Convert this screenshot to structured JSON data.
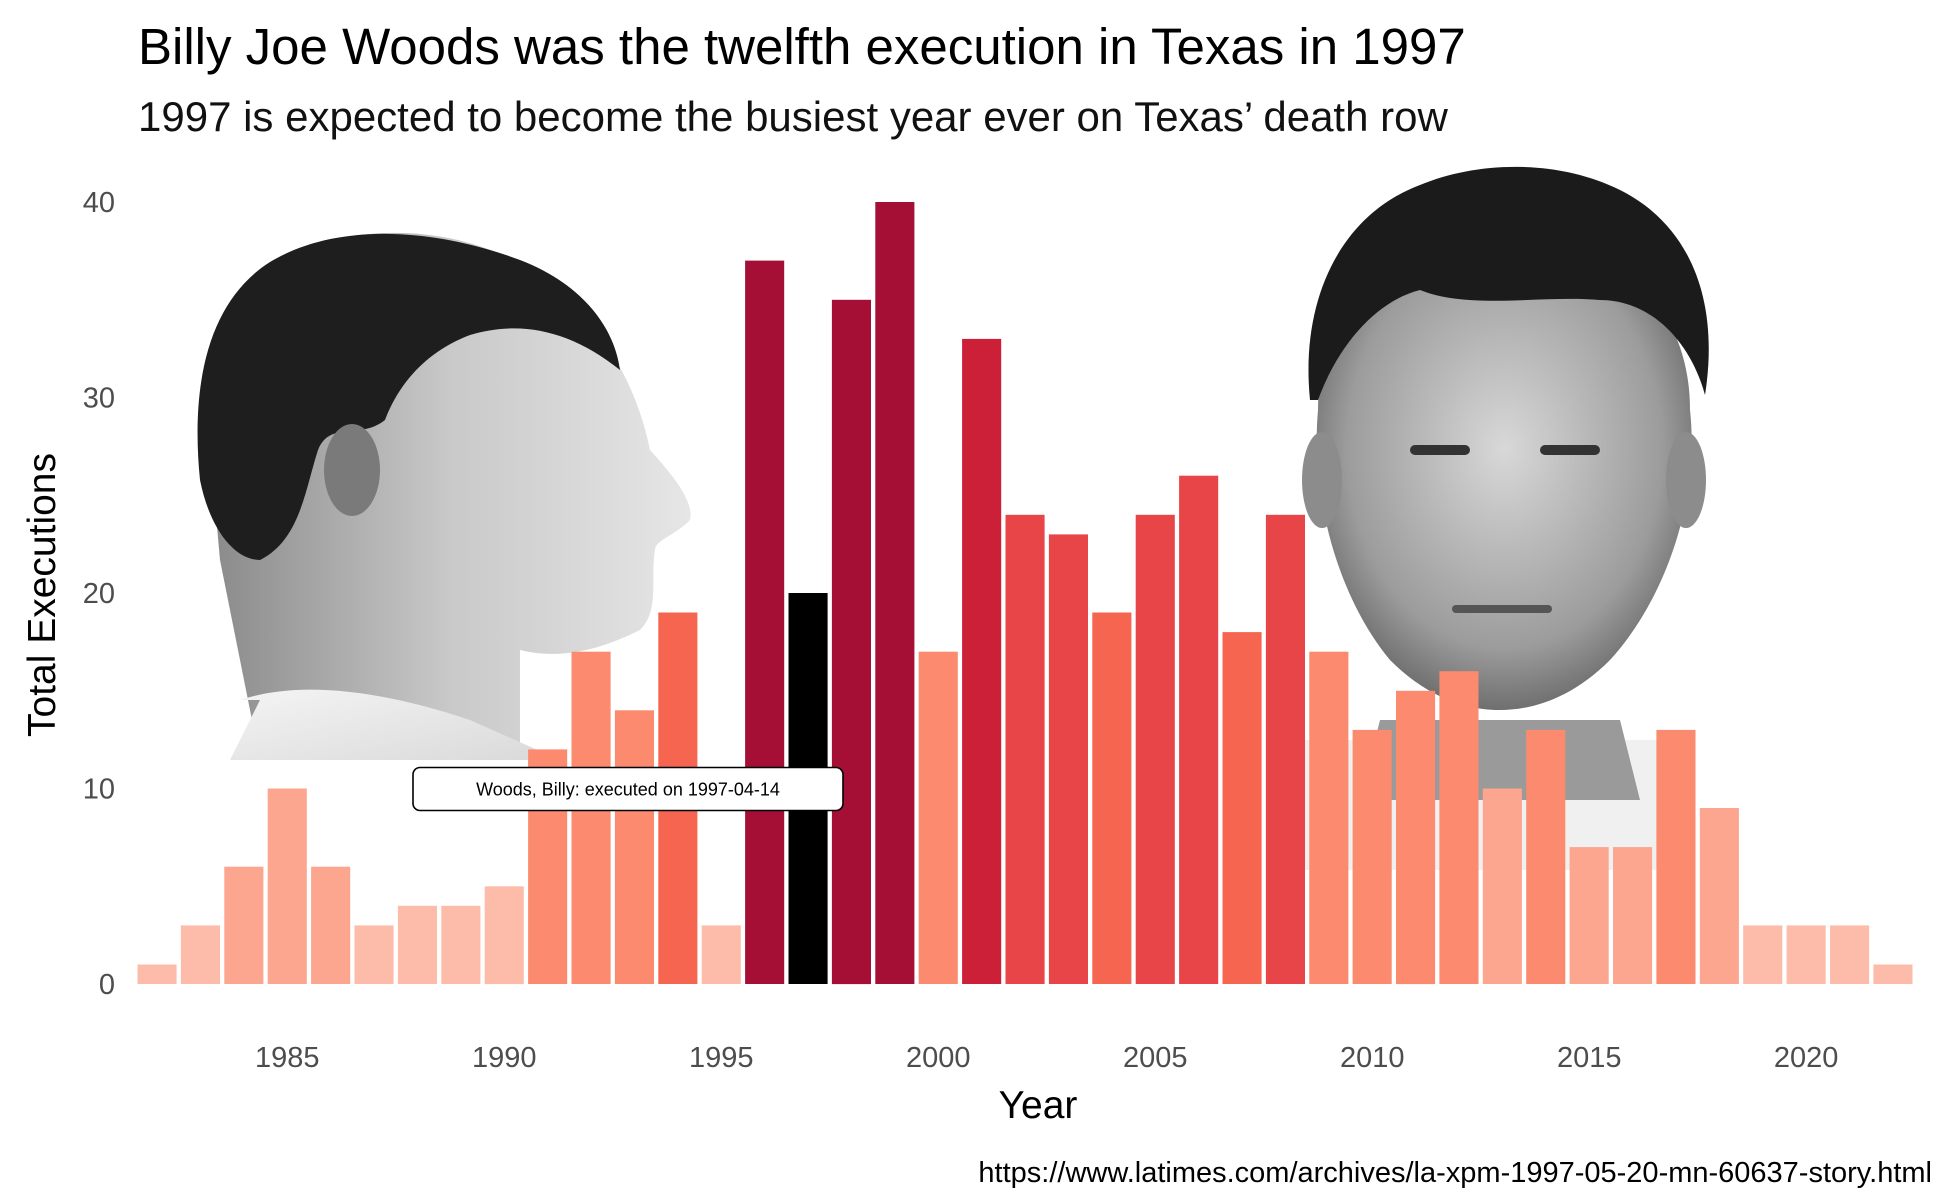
{
  "chart_data": {
    "type": "bar",
    "title": "Billy Joe Woods was the twelfth execution in Texas in 1997",
    "subtitle": "1997 is expected to become the busiest year ever on Texas’ death row",
    "xlabel": "Year",
    "ylabel": "Total Executions",
    "x": [
      1982,
      1983,
      1984,
      1985,
      1986,
      1987,
      1988,
      1989,
      1990,
      1991,
      1992,
      1993,
      1994,
      1995,
      1996,
      1997,
      1998,
      1999,
      2000,
      2001,
      2002,
      2003,
      2004,
      2005,
      2006,
      2007,
      2008,
      2009,
      2010,
      2011,
      2012,
      2013,
      2014,
      2015,
      2016,
      2017,
      2018,
      2019,
      2020,
      2021,
      2022
    ],
    "values": [
      1,
      3,
      6,
      10,
      6,
      3,
      4,
      4,
      5,
      12,
      17,
      14,
      19,
      3,
      37,
      20,
      35,
      40,
      17,
      33,
      24,
      23,
      19,
      24,
      26,
      18,
      24,
      17,
      13,
      15,
      16,
      10,
      13,
      7,
      7,
      13,
      9,
      3,
      3,
      3,
      1
    ],
    "highlight_year": 1997,
    "highlight_color": "#000000",
    "palette": [
      "#fdbcaa",
      "#fca58f",
      "#fb8a6e",
      "#f6654f",
      "#e84548",
      "#cc1f38",
      "#a50f35"
    ],
    "xticks": [
      1985,
      1990,
      1995,
      2000,
      2005,
      2010,
      2015,
      2020
    ],
    "yticks": [
      0,
      10,
      20,
      30,
      40
    ],
    "xlim": [
      1981.1,
      2022.9
    ],
    "ylim": [
      0,
      40
    ],
    "grid": false,
    "legend": "none",
    "annotation": {
      "text": "Woods, Billy: executed on 1997-04-14",
      "year": 1997,
      "value": 10
    },
    "background_images": [
      {
        "name": "profile-photo",
        "description": "black-and-white profile photograph of a man facing right"
      },
      {
        "name": "mugshot-photo",
        "description": "black-and-white frontal mugshot of a man"
      }
    ],
    "source": "https://www.latimes.com/archives/la-xpm-1997-05-20-mn-60637-story.html"
  }
}
